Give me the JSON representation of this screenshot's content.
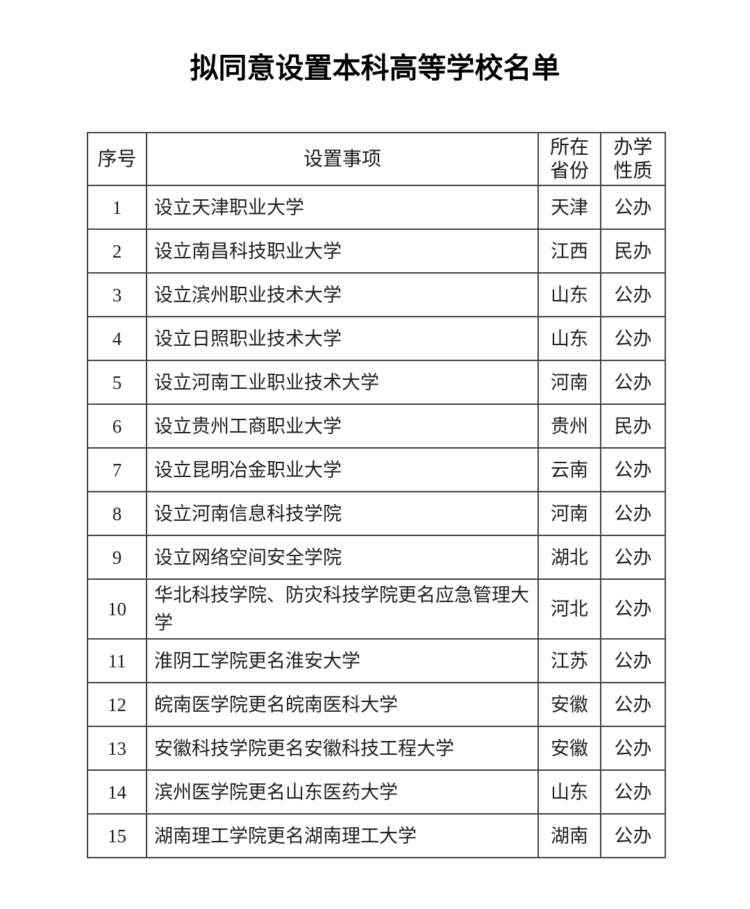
{
  "page": {
    "title": "拟同意设置本科高等学校名单"
  },
  "table": {
    "headers": {
      "no": "序号",
      "item": "设置事项",
      "province_line1": "所在",
      "province_line2": "省份",
      "type_line1": "办学",
      "type_line2": "性质"
    },
    "rows": [
      {
        "no": "1",
        "item": "设立天津职业大学",
        "province": "天津",
        "type": "公办"
      },
      {
        "no": "2",
        "item": "设立南昌科技职业大学",
        "province": "江西",
        "type": "民办"
      },
      {
        "no": "3",
        "item": "设立滨州职业技术大学",
        "province": "山东",
        "type": "公办"
      },
      {
        "no": "4",
        "item": "设立日照职业技术大学",
        "province": "山东",
        "type": "公办"
      },
      {
        "no": "5",
        "item": "设立河南工业职业技术大学",
        "province": "河南",
        "type": "公办"
      },
      {
        "no": "6",
        "item": "设立贵州工商职业大学",
        "province": "贵州",
        "type": "民办"
      },
      {
        "no": "7",
        "item": "设立昆明冶金职业大学",
        "province": "云南",
        "type": "公办"
      },
      {
        "no": "8",
        "item": "设立河南信息科技学院",
        "province": "河南",
        "type": "公办"
      },
      {
        "no": "9",
        "item": "设立网络空间安全学院",
        "province": "湖北",
        "type": "公办"
      },
      {
        "no": "10",
        "item": "华北科技学院、防灾科技学院更名应急管理大学",
        "province": "河北",
        "type": "公办"
      },
      {
        "no": "11",
        "item": "淮阴工学院更名淮安大学",
        "province": "江苏",
        "type": "公办"
      },
      {
        "no": "12",
        "item": "皖南医学院更名皖南医科大学",
        "province": "安徽",
        "type": "公办"
      },
      {
        "no": "13",
        "item": "安徽科技学院更名安徽科技工程大学",
        "province": "安徽",
        "type": "公办"
      },
      {
        "no": "14",
        "item": "滨州医学院更名山东医药大学",
        "province": "山东",
        "type": "公办"
      },
      {
        "no": "15",
        "item": "湖南理工学院更名湖南理工大学",
        "province": "湖南",
        "type": "公办"
      }
    ]
  }
}
